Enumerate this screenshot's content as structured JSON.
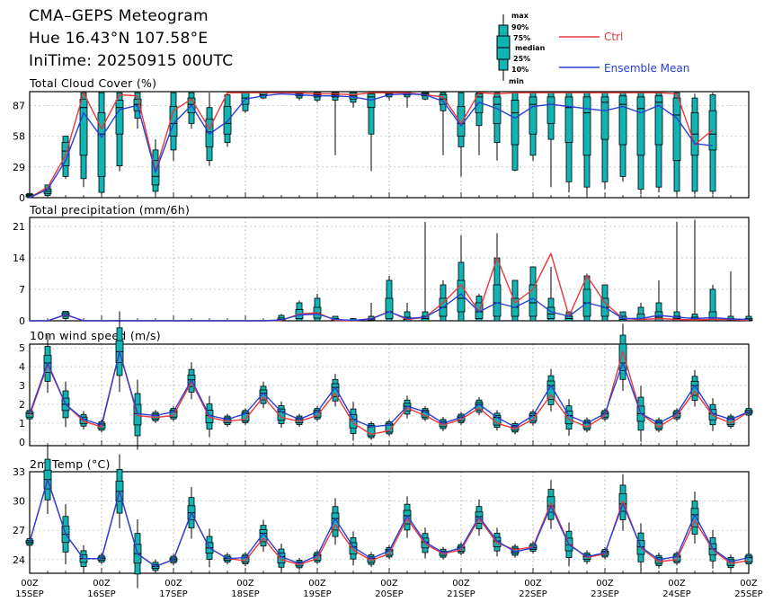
{
  "header": {
    "title": "CMA–GEPS Meteogram",
    "location": "Hue 16.43°N 107.58°E",
    "init_time": "IniTime: 20250915 00UTC"
  },
  "legend": {
    "box_labels": [
      "max",
      "90%",
      "75%",
      "median",
      "25%",
      "10%",
      "min"
    ],
    "ctrl_label": "Ctrl",
    "mean_label": "Ensemble Mean",
    "ctrl_color": "#e8383d",
    "mean_color": "#2a3fd6",
    "box_color": "#11b3b3"
  },
  "chart_data": [
    {
      "type": "box",
      "title": "Total Cloud Cover (%)",
      "ylim": [
        0,
        100
      ],
      "yticks": [
        0,
        29,
        58,
        87
      ],
      "x_start": "2025-09-15 00Z",
      "x_step_hours": 6,
      "x_labels": [
        {
          "hour": "00Z",
          "date": "15SEP"
        },
        {
          "hour": "00Z",
          "date": "16SEP"
        },
        {
          "hour": "00Z",
          "date": "17SEP"
        },
        {
          "hour": "00Z",
          "date": "18SEP"
        },
        {
          "hour": "00Z",
          "date": "19SEP"
        },
        {
          "hour": "00Z",
          "date": "20SEP"
        },
        {
          "hour": "00Z",
          "date": "21SEP"
        },
        {
          "hour": "00Z",
          "date": "22SEP"
        },
        {
          "hour": "00Z",
          "date": "23SEP"
        },
        {
          "hour": "00Z",
          "date": "24SEP"
        },
        {
          "hour": "00Z",
          "date": "25SEP"
        }
      ],
      "ctrl": [
        0,
        10,
        40,
        99,
        65,
        97,
        96,
        25,
        82,
        93,
        65,
        99,
        99,
        99,
        99,
        99,
        98,
        98,
        97,
        99,
        99,
        99,
        97,
        95,
        70,
        99,
        98,
        99,
        99,
        99,
        99,
        99,
        99,
        99,
        99,
        99,
        98,
        50,
        64
      ],
      "mean": [
        0,
        8,
        35,
        80,
        57,
        83,
        87,
        24,
        70,
        87,
        60,
        72,
        93,
        96,
        98,
        97,
        96,
        96,
        95,
        92,
        97,
        98,
        97,
        91,
        68,
        90,
        84,
        75,
        86,
        88,
        86,
        84,
        82,
        86,
        80,
        87,
        75,
        51,
        49
      ],
      "boxes": [
        [
          0,
          1,
          2,
          3,
          4
        ],
        [
          2,
          4,
          6,
          8,
          12
        ],
        [
          20,
          30,
          44,
          52,
          58
        ],
        [
          18,
          40,
          85,
          93,
          99
        ],
        [
          5,
          20,
          60,
          80,
          99
        ],
        [
          30,
          60,
          85,
          92,
          99
        ],
        [
          75,
          82,
          88,
          93,
          99
        ],
        [
          6,
          12,
          20,
          35,
          45
        ],
        [
          45,
          58,
          70,
          86,
          99
        ],
        [
          70,
          80,
          88,
          94,
          99
        ],
        [
          35,
          48,
          62,
          74,
          85
        ],
        [
          52,
          60,
          70,
          86,
          97
        ],
        [
          82,
          88,
          94,
          99,
          99
        ],
        [
          94,
          96,
          97,
          99,
          99
        ],
        [
          99,
          99,
          99,
          99,
          99
        ],
        [
          94,
          96,
          98,
          99,
          99
        ],
        [
          92,
          95,
          97,
          99,
          99
        ],
        [
          92,
          95,
          97,
          99,
          99
        ],
        [
          90,
          93,
          96,
          99,
          99
        ],
        [
          60,
          85,
          95,
          98,
          99
        ],
        [
          95,
          97,
          98,
          99,
          99
        ],
        [
          95,
          97,
          99,
          99,
          99
        ],
        [
          93,
          96,
          98,
          99,
          99
        ],
        [
          82,
          88,
          93,
          97,
          99
        ],
        [
          48,
          58,
          70,
          86,
          99
        ],
        [
          68,
          80,
          95,
          98,
          99
        ],
        [
          52,
          70,
          88,
          95,
          99
        ],
        [
          26,
          50,
          80,
          92,
          99
        ],
        [
          40,
          60,
          88,
          95,
          99
        ],
        [
          55,
          70,
          88,
          95,
          99
        ],
        [
          15,
          52,
          85,
          95,
          99
        ],
        [
          10,
          40,
          80,
          95,
          99
        ],
        [
          15,
          55,
          90,
          95,
          99
        ],
        [
          20,
          50,
          88,
          96,
          99
        ],
        [
          8,
          40,
          84,
          95,
          99
        ],
        [
          10,
          50,
          90,
          96,
          99
        ],
        [
          6,
          35,
          78,
          94,
          99
        ],
        [
          6,
          40,
          60,
          80,
          94
        ],
        [
          6,
          45,
          60,
          82,
          97
        ]
      ],
      "whiskers": [
        [
          0,
          4
        ],
        [
          0,
          12
        ],
        [
          18,
          58
        ],
        [
          10,
          99
        ],
        [
          3,
          99
        ],
        [
          25,
          99
        ],
        [
          65,
          99
        ],
        [
          2,
          55
        ],
        [
          35,
          99
        ],
        [
          65,
          99
        ],
        [
          30,
          99
        ],
        [
          48,
          99
        ],
        [
          80,
          99
        ],
        [
          93,
          99
        ],
        [
          99,
          99
        ],
        [
          92,
          99
        ],
        [
          90,
          99
        ],
        [
          40,
          99
        ],
        [
          85,
          99
        ],
        [
          25,
          99
        ],
        [
          92,
          99
        ],
        [
          85,
          99
        ],
        [
          92,
          99
        ],
        [
          40,
          99
        ],
        [
          20,
          99
        ],
        [
          40,
          99
        ],
        [
          35,
          99
        ],
        [
          25,
          99
        ],
        [
          35,
          99
        ],
        [
          10,
          99
        ],
        [
          5,
          99
        ],
        [
          2,
          99
        ],
        [
          8,
          99
        ],
        [
          15,
          99
        ],
        [
          3,
          99
        ],
        [
          5,
          99
        ],
        [
          3,
          99
        ],
        [
          3,
          98
        ],
        [
          3,
          99
        ]
      ]
    },
    {
      "type": "box",
      "title": "Total precipitation (mm/6h)",
      "ylim": [
        0,
        23
      ],
      "yticks": [
        0,
        7,
        14,
        21
      ],
      "ctrl": [
        0,
        0,
        1.3,
        0,
        0,
        0,
        0,
        0,
        0,
        0,
        0,
        0,
        0,
        0,
        0.1,
        1.5,
        1.8,
        0.1,
        0,
        0.5,
        2,
        0.3,
        0.8,
        4,
        8,
        2,
        14,
        4,
        7,
        15,
        1,
        10,
        4,
        0.5,
        0.3,
        0.5,
        0.3,
        0.2,
        0.3,
        0.3,
        0.1
      ],
      "mean": [
        0,
        0,
        1.4,
        0,
        0,
        0,
        0,
        0,
        0,
        0,
        0,
        0,
        0,
        0,
        0.2,
        1.3,
        1.5,
        0.3,
        0.1,
        0.4,
        2,
        0.5,
        0.8,
        3,
        6,
        2,
        4,
        3,
        5,
        2,
        1,
        4,
        3,
        0.5,
        0.5,
        1.2,
        0.8,
        0.5,
        0.7,
        0.4,
        0.3
      ],
      "boxes": [
        [
          0,
          0,
          0,
          0,
          0
        ],
        [
          0,
          0,
          0,
          0,
          0
        ],
        [
          0.5,
          1,
          1.4,
          1.8,
          2.1
        ],
        [
          0,
          0,
          0,
          0,
          0
        ],
        [
          0,
          0,
          0,
          0,
          0
        ],
        [
          0,
          0,
          0,
          0,
          0
        ],
        [
          0,
          0,
          0,
          0,
          0
        ],
        [
          0,
          0,
          0,
          0,
          0
        ],
        [
          0,
          0,
          0,
          0,
          0
        ],
        [
          0,
          0,
          0,
          0,
          0
        ],
        [
          0,
          0,
          0,
          0,
          0
        ],
        [
          0,
          0,
          0,
          0,
          0
        ],
        [
          0,
          0,
          0,
          0,
          0
        ],
        [
          0,
          0,
          0,
          0,
          0
        ],
        [
          0,
          0.1,
          0.3,
          0.6,
          1.2
        ],
        [
          0,
          0.5,
          1.3,
          2.5,
          4
        ],
        [
          0,
          0.6,
          1.7,
          3,
          5
        ],
        [
          0,
          0,
          0.2,
          0.5,
          1
        ],
        [
          0,
          0,
          0,
          0.2,
          0.5
        ],
        [
          0,
          0,
          0.2,
          0.5,
          1
        ],
        [
          0,
          0.5,
          2,
          5,
          9
        ],
        [
          0,
          0,
          0.3,
          0.8,
          2
        ],
        [
          0,
          0,
          0.5,
          1,
          2
        ],
        [
          0,
          1,
          3,
          5,
          8
        ],
        [
          0,
          2,
          5,
          9,
          13
        ],
        [
          0,
          0.5,
          2,
          4,
          5.5
        ],
        [
          0,
          1,
          4,
          8,
          14
        ],
        [
          0,
          1,
          3,
          5,
          9
        ],
        [
          0,
          1,
          4,
          8,
          12
        ],
        [
          0,
          0.5,
          1.5,
          3,
          5
        ],
        [
          0,
          0,
          0.5,
          1,
          2
        ],
        [
          0,
          1,
          4,
          7,
          10
        ],
        [
          0,
          1,
          3,
          5,
          8
        ],
        [
          0,
          0,
          0.3,
          1,
          2
        ],
        [
          0,
          0,
          0.5,
          1.5,
          3
        ],
        [
          0,
          0,
          0.8,
          2,
          4
        ],
        [
          0,
          0,
          0.5,
          1,
          2
        ],
        [
          0,
          0,
          0.3,
          0.8,
          1.5
        ],
        [
          0,
          0,
          0.6,
          2,
          7
        ],
        [
          0,
          0,
          0.2,
          0.5,
          1
        ],
        [
          0,
          0,
          0.2,
          0.5,
          1
        ]
      ],
      "whiskers": [
        [
          0,
          0
        ],
        [
          0,
          0
        ],
        [
          0.3,
          2.2
        ],
        [
          0,
          0
        ],
        [
          0,
          0
        ],
        [
          0,
          0
        ],
        [
          0,
          0
        ],
        [
          0,
          0
        ],
        [
          0,
          0
        ],
        [
          0,
          0
        ],
        [
          0,
          0
        ],
        [
          0,
          0
        ],
        [
          0,
          0
        ],
        [
          0,
          0
        ],
        [
          0,
          1.5
        ],
        [
          0,
          4.5
        ],
        [
          0,
          6
        ],
        [
          0,
          1
        ],
        [
          0,
          0.5
        ],
        [
          0,
          4
        ],
        [
          0,
          10
        ],
        [
          0,
          4
        ],
        [
          0,
          22
        ],
        [
          0,
          9
        ],
        [
          0,
          19
        ],
        [
          0,
          6
        ],
        [
          0,
          19.5
        ],
        [
          0,
          9
        ],
        [
          0,
          12
        ],
        [
          0,
          12
        ],
        [
          0,
          2
        ],
        [
          0,
          10.5
        ],
        [
          0,
          8
        ],
        [
          0,
          0.5
        ],
        [
          0,
          4
        ],
        [
          0,
          9
        ],
        [
          0,
          22
        ],
        [
          0,
          22.5
        ],
        [
          0,
          8
        ],
        [
          0,
          11
        ],
        [
          0,
          0.5
        ]
      ]
    },
    {
      "type": "box",
      "title": "10m wind speed (m/s)",
      "ylim": [
        -0.2,
        5.2
      ],
      "yticks": [
        0,
        1,
        2,
        3,
        4,
        5
      ],
      "ctrl": [
        1.4,
        4.1,
        2.0,
        1.1,
        0.8,
        4.8,
        1.4,
        1.3,
        1.4,
        3.2,
        1.3,
        1.1,
        1.2,
        2.4,
        1.3,
        1.1,
        1.4,
        2.6,
        1.0,
        0.4,
        0.6,
        1.8,
        1.4,
        0.9,
        1.2,
        1.8,
        1.0,
        0.7,
        1.2,
        2.5,
        1.2,
        0.8,
        1.4,
        4.8,
        1.5,
        0.8,
        1.4,
        2.7,
        1.4,
        1.0,
        1.6
      ],
      "mean": [
        1.5,
        4.2,
        2.0,
        1.2,
        0.9,
        4.8,
        1.5,
        1.4,
        1.6,
        3.3,
        1.4,
        1.2,
        1.5,
        2.6,
        1.6,
        1.2,
        1.6,
        2.9,
        1.2,
        0.8,
        0.9,
        1.9,
        1.6,
        1.0,
        1.3,
        2.0,
        1.3,
        0.8,
        1.4,
        3.0,
        1.4,
        1.0,
        1.5,
        4.2,
        1.5,
        1.0,
        1.5,
        3.0,
        1.5,
        1.2,
        1.6
      ]
    },
    {
      "type": "box",
      "title": "2m Temp (°C)",
      "ylim": [
        22.6,
        33
      ],
      "yticks": [
        24,
        27,
        30,
        33
      ],
      "ctrl": [
        25.8,
        32.2,
        26.6,
        24.1,
        24.1,
        31.0,
        24.6,
        23.3,
        24.0,
        28.8,
        25.2,
        24.1,
        23.9,
        26.2,
        24.0,
        23.5,
        24.1,
        27.6,
        25.0,
        23.9,
        24.6,
        28.2,
        25.6,
        24.6,
        25.0,
        28.2,
        25.7,
        25.0,
        25.3,
        29.8,
        25.6,
        24.2,
        24.6,
        30.0,
        25.2,
        23.8,
        24.0,
        28.0,
        25.0,
        23.6,
        23.9
      ],
      "mean": [
        25.8,
        32.2,
        26.6,
        24.1,
        24.1,
        31.0,
        24.6,
        23.3,
        24.0,
        28.8,
        25.2,
        24.1,
        24.2,
        26.7,
        24.3,
        23.6,
        24.4,
        28.2,
        25.3,
        24.1,
        24.9,
        28.5,
        25.8,
        24.7,
        25.2,
        28.4,
        25.9,
        24.8,
        25.2,
        29.5,
        25.5,
        24.3,
        24.7,
        29.7,
        25.3,
        24.0,
        24.3,
        28.6,
        25.1,
        23.8,
        24.2
      ]
    }
  ]
}
